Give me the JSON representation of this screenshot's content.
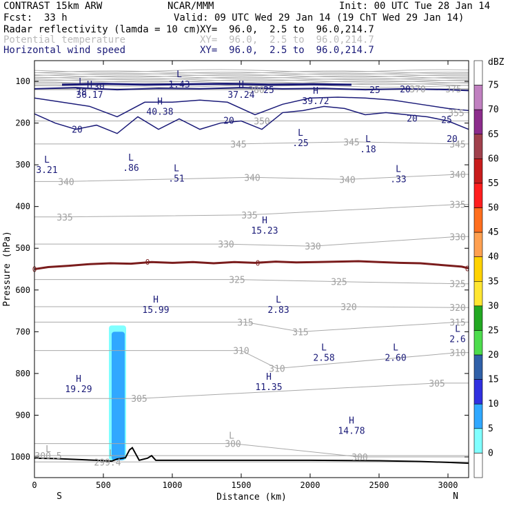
{
  "header": {
    "model": "CONTRAST 15km ARW",
    "center": "NCAR/MMM",
    "init": "Init: 00 UTC Tue 28 Jan 14",
    "fcst_label": "Fcst:",
    "fcst_value": "33 h",
    "valid": "Valid: 09 UTC Wed 29 Jan 14 (19 ChT Wed 29 Jan 14)",
    "fields": [
      {
        "name": "Radar reflectivity (lamda = 10 cm)",
        "xy": "XY=  96.0,  2.5 to  96.0,214.7",
        "color": "#000000"
      },
      {
        "name": "Potential temperature",
        "xy": "XY=  96.0,  2.5 to  96.0,214.7",
        "color": "#b9b9b9"
      },
      {
        "name": "Horizontal wind speed",
        "xy": "XY=  96.0,  2.5 to  96.0,214.7",
        "color": "#1a1a78"
      }
    ]
  },
  "chart_data": {
    "type": "cross-section",
    "xlabel": "Distance (km)",
    "ylabel": "Pressure (hPa)",
    "xlim": [
      0,
      3150
    ],
    "ylim": [
      1050,
      70
    ],
    "x_ticks": [
      0,
      500,
      1000,
      1500,
      2000,
      2500,
      3000
    ],
    "y_ticks": [
      100,
      200,
      300,
      400,
      500,
      600,
      700,
      800,
      900,
      1000
    ],
    "x_end_labels": {
      "left": "S",
      "right": "N"
    },
    "colorbar": {
      "unit": "dBZ",
      "levels": [
        75,
        70,
        65,
        60,
        55,
        50,
        45,
        40,
        35,
        30,
        25,
        20,
        15,
        10,
        5,
        0
      ],
      "colors": [
        "#ffffff",
        "#c080c0",
        "#8c2c8c",
        "#a0404c",
        "#c81c1c",
        "#ff1e1e",
        "#ff6e1e",
        "#ffa050",
        "#ffd200",
        "#ffe632",
        "#22a822",
        "#4ddc4d",
        "#3060a8",
        "#3030e0",
        "#30a8ff",
        "#80ffff",
        "#ffffff"
      ]
    },
    "theta_labels": [
      {
        "x": 1610,
        "p": 120,
        "label": "380"
      },
      {
        "x": 2780,
        "p": 118,
        "label": "370"
      },
      {
        "x": 3040,
        "p": 118,
        "label": "375"
      },
      {
        "x": 1650,
        "p": 195,
        "label": "350"
      },
      {
        "x": 3060,
        "p": 175,
        "label": "355"
      },
      {
        "x": 1480,
        "p": 250,
        "label": "345"
      },
      {
        "x": 2300,
        "p": 245,
        "label": "345"
      },
      {
        "x": 3070,
        "p": 250,
        "label": "345"
      },
      {
        "x": 230,
        "p": 340,
        "label": "340"
      },
      {
        "x": 1580,
        "p": 330,
        "label": "340"
      },
      {
        "x": 2270,
        "p": 335,
        "label": "340"
      },
      {
        "x": 3070,
        "p": 323,
        "label": "340"
      },
      {
        "x": 220,
        "p": 425,
        "label": "335"
      },
      {
        "x": 1560,
        "p": 420,
        "label": "335"
      },
      {
        "x": 3070,
        "p": 395,
        "label": "335"
      },
      {
        "x": 1390,
        "p": 490,
        "label": "330"
      },
      {
        "x": 2020,
        "p": 495,
        "label": "330"
      },
      {
        "x": 3070,
        "p": 472,
        "label": "330"
      },
      {
        "x": 1470,
        "p": 575,
        "label": "325"
      },
      {
        "x": 2210,
        "p": 580,
        "label": "325"
      },
      {
        "x": 3070,
        "p": 585,
        "label": "325"
      },
      {
        "x": 2280,
        "p": 640,
        "label": "320"
      },
      {
        "x": 3070,
        "p": 642,
        "label": "320"
      },
      {
        "x": 1530,
        "p": 677,
        "label": "315"
      },
      {
        "x": 1930,
        "p": 700,
        "label": "315"
      },
      {
        "x": 3070,
        "p": 677,
        "label": "315"
      },
      {
        "x": 1500,
        "p": 745,
        "label": "310"
      },
      {
        "x": 1760,
        "p": 788,
        "label": "310"
      },
      {
        "x": 3070,
        "p": 750,
        "label": "310"
      },
      {
        "x": 2920,
        "p": 823,
        "label": "305"
      },
      {
        "x": 760,
        "p": 860,
        "label": "305"
      },
      {
        "x": 1440,
        "p": 968,
        "label": "300"
      },
      {
        "x": 2360,
        "p": 1000,
        "label": "300"
      },
      {
        "x": 100,
        "p": 997,
        "label": "300.5"
      },
      {
        "x": 530,
        "p": 1012,
        "label": "299.4"
      }
    ],
    "theta_minmax": [
      {
        "x": 1430,
        "p": 948,
        "label": "L"
      },
      {
        "x": 100,
        "p": 980,
        "label": "L"
      },
      {
        "x": 560,
        "p": 990,
        "label": "L"
      }
    ],
    "wind_labels": [
      {
        "x": 1700,
        "p": 120,
        "label": "25"
      },
      {
        "x": 2470,
        "p": 120,
        "label": "25"
      },
      {
        "x": 2690,
        "p": 118,
        "label": "20"
      },
      {
        "x": 2740,
        "p": 188,
        "label": "20"
      },
      {
        "x": 2990,
        "p": 192,
        "label": "25"
      },
      {
        "x": 3030,
        "p": 237,
        "label": "20"
      },
      {
        "x": 310,
        "p": 215,
        "label": "20"
      },
      {
        "x": 1410,
        "p": 193,
        "label": "20"
      },
      {
        "x": 470,
        "p": 112,
        "label": "30"
      }
    ],
    "wind_extrema": [
      {
        "x": 340,
        "p": 118,
        "type": "L",
        "value": "78"
      },
      {
        "x": 1050,
        "p": 100,
        "type": "L",
        "value": "1.43"
      },
      {
        "x": 400,
        "p": 125,
        "type": "H",
        "value": "36.17"
      },
      {
        "x": 1500,
        "p": 125,
        "type": "H",
        "value": "37.24"
      },
      {
        "x": 2040,
        "p": 140,
        "type": "H",
        "value": "39.72"
      },
      {
        "x": 910,
        "p": 165,
        "type": "H",
        "value": "40.38"
      },
      {
        "x": 1930,
        "p": 240,
        "type": "L",
        "value": ".25"
      },
      {
        "x": 2420,
        "p": 255,
        "type": "L",
        "value": ".18"
      },
      {
        "x": 90,
        "p": 305,
        "type": "L",
        "value": "3.21"
      },
      {
        "x": 700,
        "p": 300,
        "type": "L",
        "value": ".86"
      },
      {
        "x": 1030,
        "p": 325,
        "type": "L",
        "value": ".51"
      },
      {
        "x": 2640,
        "p": 327,
        "type": "L",
        "value": ".33"
      },
      {
        "x": 1670,
        "p": 450,
        "type": "H",
        "value": "15.23"
      },
      {
        "x": 880,
        "p": 640,
        "type": "H",
        "value": "15.99"
      },
      {
        "x": 1770,
        "p": 640,
        "type": "L",
        "value": "2.83"
      },
      {
        "x": 3070,
        "p": 710,
        "type": "L",
        "value": "2.6"
      },
      {
        "x": 2100,
        "p": 755,
        "type": "L",
        "value": "2.58"
      },
      {
        "x": 2620,
        "p": 755,
        "type": "L",
        "value": "2.60"
      },
      {
        "x": 320,
        "p": 830,
        "type": "H",
        "value": "19.29"
      },
      {
        "x": 1700,
        "p": 825,
        "type": "H",
        "value": "11.35"
      },
      {
        "x": 2300,
        "p": 930,
        "type": "H",
        "value": "14.78"
      }
    ],
    "freezing_label": "0",
    "freezing_level": [
      [
        0,
        550
      ],
      [
        100,
        545
      ],
      [
        250,
        542
      ],
      [
        400,
        538
      ],
      [
        550,
        536
      ],
      [
        700,
        537
      ],
      [
        850,
        533
      ],
      [
        1000,
        535
      ],
      [
        1150,
        533
      ],
      [
        1300,
        536
      ],
      [
        1450,
        533
      ],
      [
        1600,
        535
      ],
      [
        1750,
        532
      ],
      [
        1900,
        534
      ],
      [
        2050,
        533
      ],
      [
        2200,
        532
      ],
      [
        2350,
        531
      ],
      [
        2500,
        533
      ],
      [
        2650,
        535
      ],
      [
        2800,
        536
      ],
      [
        2950,
        540
      ],
      [
        3100,
        544
      ],
      [
        3150,
        548
      ]
    ],
    "terrain_label": "terrain",
    "terrain": [
      [
        0,
        1003
      ],
      [
        150,
        1004
      ],
      [
        300,
        1006
      ],
      [
        450,
        1008
      ],
      [
        560,
        1010
      ],
      [
        600,
        1005
      ],
      [
        660,
        1002
      ],
      [
        690,
        983
      ],
      [
        710,
        978
      ],
      [
        730,
        990
      ],
      [
        760,
        1008
      ],
      [
        820,
        1003
      ],
      [
        850,
        997
      ],
      [
        880,
        1008
      ],
      [
        1000,
        1008
      ],
      [
        1500,
        1008
      ],
      [
        2000,
        1008
      ],
      [
        2500,
        1009
      ],
      [
        2800,
        1011
      ],
      [
        3000,
        1013
      ],
      [
        3150,
        1015
      ]
    ],
    "reflectivity_label": "reflectivity",
    "reflectivity_cells": [
      {
        "dbz": 5,
        "x0": 540,
        "x1": 665,
        "p_top": 685,
        "p_bottom": 1008
      },
      {
        "dbz": 10,
        "x0": 560,
        "x1": 655,
        "p_top": 700,
        "p_bottom": 1008
      }
    ]
  }
}
